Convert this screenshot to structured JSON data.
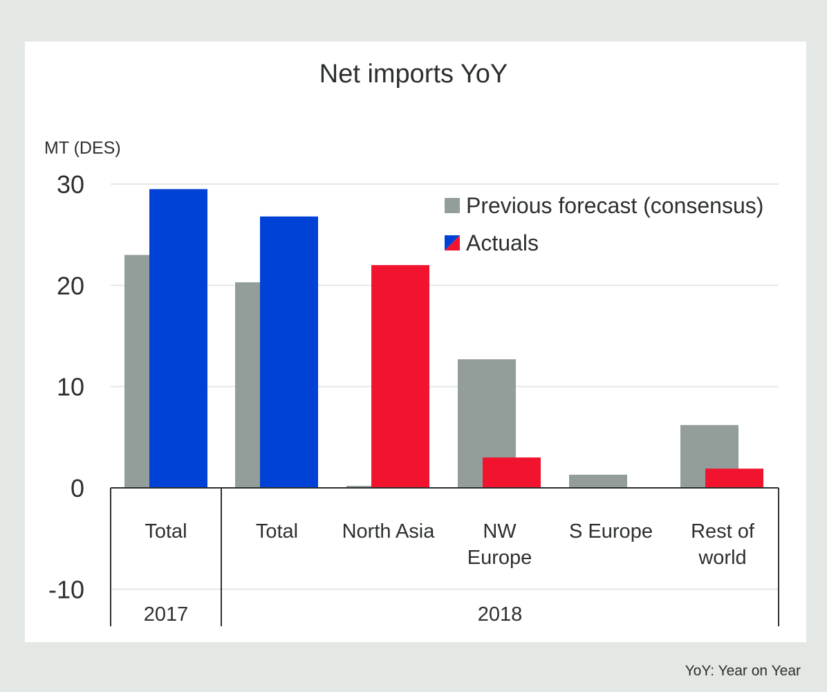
{
  "chart_data": {
    "type": "bar",
    "title": "Net imports YoY",
    "ylabel": "MT (DES)",
    "ylim": [
      -10,
      30
    ],
    "yticks": [
      30,
      20,
      10,
      0,
      -10
    ],
    "grid": true,
    "categories": [
      "Total",
      "Total",
      "North Asia",
      "NW\nEurope",
      "S Europe",
      "Rest of\nworld"
    ],
    "category_lines": [
      [
        "Total"
      ],
      [
        "Total"
      ],
      [
        "North Asia"
      ],
      [
        "NW",
        "Europe"
      ],
      [
        "S Europe"
      ],
      [
        "Rest of",
        "world"
      ]
    ],
    "groups": [
      {
        "label": "2017",
        "categories": [
          0
        ]
      },
      {
        "label": "2018",
        "categories": [
          1,
          2,
          3,
          4,
          5
        ]
      }
    ],
    "series": [
      {
        "name": "Previous forecast (consensus)",
        "color": "#939e9b",
        "values": [
          23,
          20.3,
          0.2,
          12.7,
          1.3,
          6.2
        ]
      },
      {
        "name": "Actuals",
        "colors": [
          "#0041d6",
          "#0041d6",
          "#f2132e",
          "#f2132e",
          null,
          "#f2132e"
        ],
        "values": [
          29.5,
          26.8,
          22,
          3,
          null,
          1.9
        ]
      }
    ],
    "legend": {
      "position": "top-right",
      "actuals_swatch_colors": [
        "#0041d6",
        "#f2132e"
      ]
    }
  },
  "footnote": "YoY: Year on Year"
}
